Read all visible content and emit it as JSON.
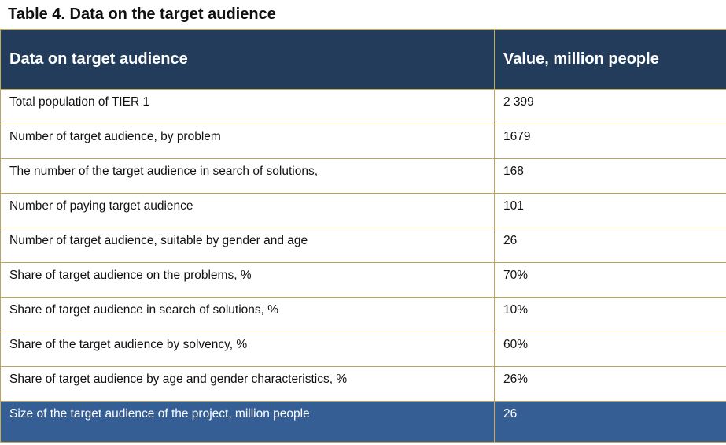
{
  "caption": "Table 4. Data on the target audience",
  "table": {
    "headers": [
      "Data on target audience",
      "Value, million people"
    ],
    "rows": [
      {
        "label": "Total population of TIER 1",
        "value": "2 399"
      },
      {
        "label": "Number of target audience, by problem",
        "value": "1679"
      },
      {
        "label": "The number of the target audience in search of solutions,",
        "value": "168"
      },
      {
        "label": "Number of paying target audience",
        "value": "101"
      },
      {
        "label": "Number of target audience, suitable by gender and age",
        "value": "26"
      },
      {
        "label": "Share of target audience on the problems, %",
        "value": "70%"
      },
      {
        "label": "Share of target audience in search of solutions, %",
        "value": "10%"
      },
      {
        "label": "Share of the target audience by solvency, %",
        "value": "60%"
      },
      {
        "label": "Share of target audience by age and gender characteristics, %",
        "value": "26%"
      }
    ],
    "total": {
      "label": "Size of the target audience of the project, million people",
      "value": "26"
    }
  },
  "colors": {
    "header_bg": "#233c5c",
    "total_bg": "#355f94",
    "border": "#b8a45f"
  }
}
